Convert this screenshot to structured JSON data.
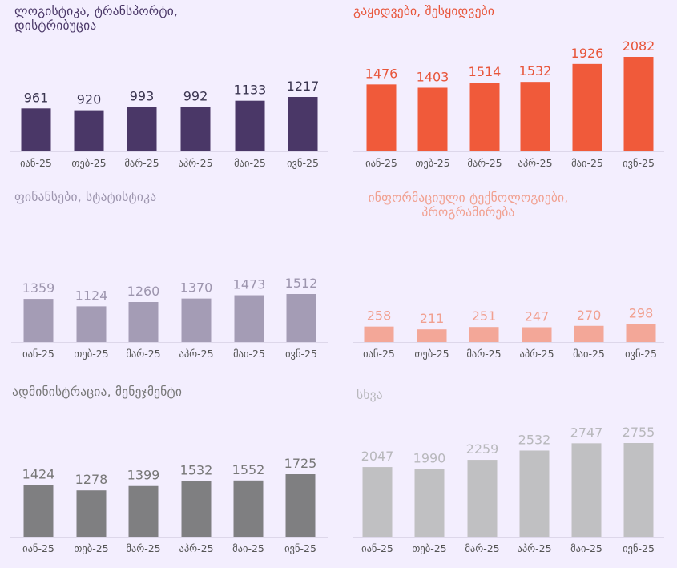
{
  "chart_data": [
    {
      "type": "bar",
      "title": "ლოგისტიკა, ტრანსპორტი,\nდისტრიბუცია",
      "categories": [
        "იან-25",
        "თებ-25",
        "მარ-25",
        "აპრ-25",
        "მაი-25",
        "ივნ-25"
      ],
      "values": [
        961,
        920,
        993,
        992,
        1133,
        1217
      ],
      "ylim": [
        0,
        1217
      ],
      "color": "#4a3767",
      "title_color": "#4a3767",
      "label_color": "#3a3550",
      "grid": false
    },
    {
      "type": "bar",
      "title": "გაყიდვები, შესყიდვები",
      "categories": [
        "იან-25",
        "თებ-25",
        "მარ-25",
        "აპრ-25",
        "მაი-25",
        "ივნ-25"
      ],
      "values": [
        1476,
        1403,
        1514,
        1532,
        1926,
        2082
      ],
      "ylim": [
        0,
        2082
      ],
      "color": "#f05a3a",
      "title_color": "#e8553a",
      "label_color": "#e8553a",
      "grid": false
    },
    {
      "type": "bar",
      "title": "ფინანსები, სტატისტიკა",
      "categories": [
        "იან-25",
        "თებ-25",
        "მარ-25",
        "აპრ-25",
        "მაი-25",
        "ივნ-25"
      ],
      "values": [
        1359,
        1124,
        1260,
        1370,
        1473,
        1512
      ],
      "ylim": [
        0,
        1512
      ],
      "color": "#a49cb5",
      "title_color": "#9d95ae",
      "label_color": "#9d95ae",
      "grid": false
    },
    {
      "type": "bar",
      "title": "ინფორმაციული ტექნოლოგიები,\nპროგრამირება",
      "categories": [
        "იან-25",
        "თებ-25",
        "მარ-25",
        "აპრ-25",
        "მაი-25",
        "ივნ-25"
      ],
      "values": [
        258,
        211,
        251,
        247,
        270,
        298
      ],
      "ylim": [
        0,
        2082
      ],
      "color": "#f3a798",
      "title_color": "#f1a090",
      "label_color": "#f1a090",
      "grid": false
    },
    {
      "type": "bar",
      "title": "ადმინისტრაცია, მენეჯმენტი",
      "categories": [
        "იან-25",
        "თებ-25",
        "მარ-25",
        "აპრ-25",
        "მაი-25",
        "ივნ-25"
      ],
      "values": [
        1424,
        1278,
        1399,
        1532,
        1552,
        1725
      ],
      "ylim": [
        0,
        1725
      ],
      "color": "#7f7f81",
      "title_color": "#777777",
      "label_color": "#777777",
      "grid": false
    },
    {
      "type": "bar",
      "title": "სხვა",
      "categories": [
        "იან-25",
        "თებ-25",
        "მარ-25",
        "აპრ-25",
        "მაი-25",
        "ივნ-25"
      ],
      "values": [
        2047,
        1990,
        2259,
        2532,
        2747,
        2755
      ],
      "ylim": [
        0,
        2755
      ],
      "color": "#c0c0c2",
      "title_color": "#b8b8bc",
      "label_color": "#b8b8bc",
      "grid": false
    }
  ]
}
